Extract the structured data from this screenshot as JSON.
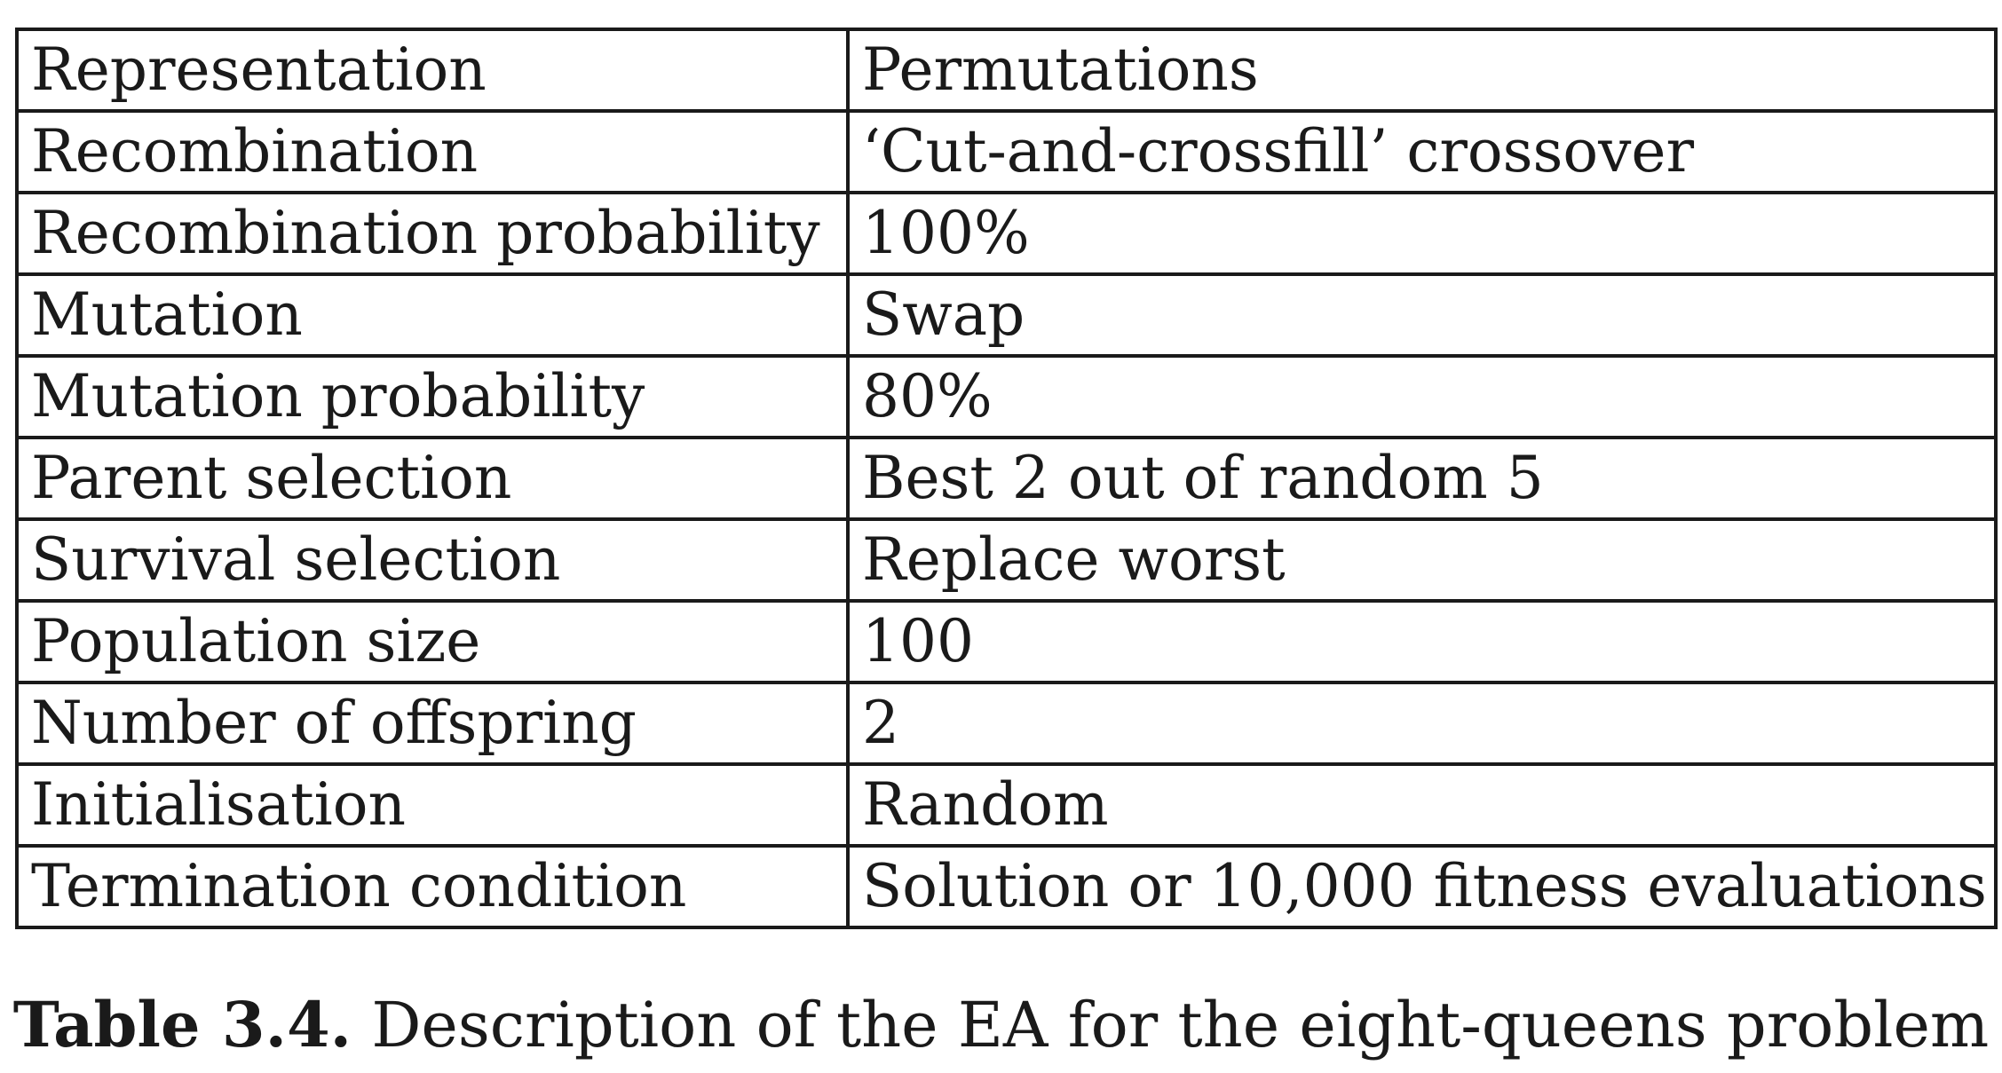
{
  "table": {
    "rows": [
      {
        "parameter": "Representation",
        "value": "Permutations"
      },
      {
        "parameter": "Recombination",
        "value": "‘Cut-and-crossfill’ crossover"
      },
      {
        "parameter": "Recombination probability",
        "value": "100%"
      },
      {
        "parameter": "Mutation",
        "value": "Swap"
      },
      {
        "parameter": "Mutation probability",
        "value": "80%"
      },
      {
        "parameter": "Parent selection",
        "value": "Best 2 out of random 5"
      },
      {
        "parameter": "Survival selection",
        "value": "Replace worst"
      },
      {
        "parameter": "Population size",
        "value": "100"
      },
      {
        "parameter": "Number of offspring",
        "value": "2"
      },
      {
        "parameter": "Initialisation",
        "value": "Random"
      },
      {
        "parameter": "Termination condition",
        "value": "Solution or 10,000 fitness evaluations"
      }
    ]
  },
  "caption": {
    "label": "Table 3.4.",
    "text": "Description of the EA for the eight-queens problem"
  }
}
